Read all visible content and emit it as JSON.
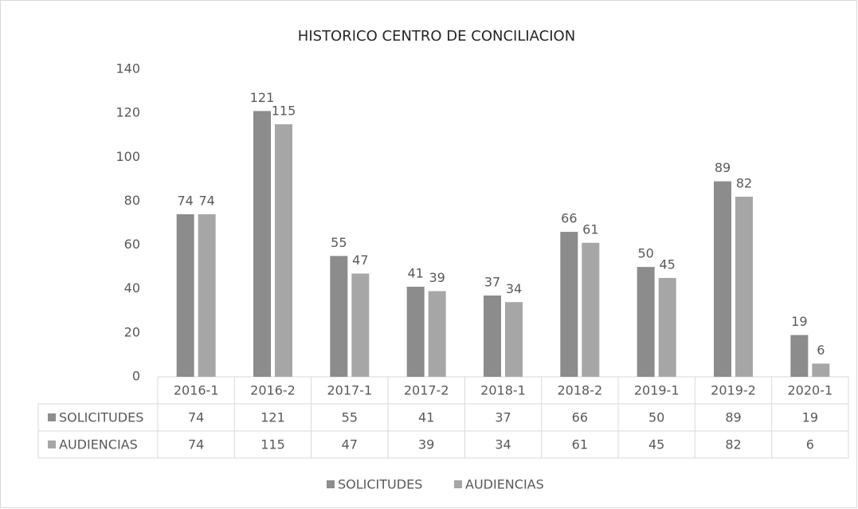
{
  "chart_data": {
    "type": "bar",
    "title": "HISTORICO CENTRO DE CONCILIACION",
    "categories": [
      "2016-1",
      "2016-2",
      "2017-1",
      "2017-2",
      "2018-1",
      "2018-2",
      "2019-1",
      "2019-2",
      "2020-1"
    ],
    "series": [
      {
        "name": "SOLICITUDES",
        "color": "#8c8c8c",
        "values": [
          74,
          121,
          55,
          41,
          37,
          66,
          50,
          89,
          19
        ]
      },
      {
        "name": "AUDIENCIAS",
        "color": "#a6a6a6",
        "values": [
          74,
          115,
          47,
          39,
          34,
          61,
          45,
          82,
          6
        ]
      }
    ],
    "ylim": [
      0,
      140
    ],
    "yticks": [
      0,
      20,
      40,
      60,
      80,
      100,
      120,
      140
    ],
    "grid": false,
    "data_table": true,
    "legend": "bottom"
  }
}
